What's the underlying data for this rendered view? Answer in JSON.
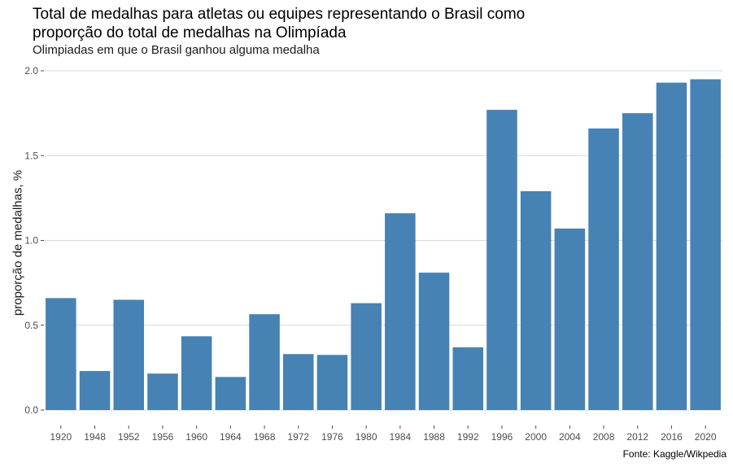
{
  "chart_data": {
    "type": "bar",
    "title": "Total de medalhas para atletas ou equipes representando o Brasil como proporção do total de medalhas na Olimpíada",
    "title_lines": [
      "Total de medalhas para atletas ou equipes representando o Brasil como",
      "proporção do total de medalhas na Olimpíada"
    ],
    "subtitle": "Olimpiadas em que o Brasil ganhou alguma medalha",
    "caption": "Fonte: Kaggle/Wikpedia",
    "xlabel": "",
    "ylabel": "proporção de medalhas, %",
    "ylim": [
      0,
      2.0
    ],
    "yticks": [
      0.0,
      0.5,
      1.0,
      1.5,
      2.0
    ],
    "ytick_labels": [
      "0.0",
      "0.5",
      "1.0",
      "1.5",
      "2.0"
    ],
    "grid": "horizontal",
    "bar_color": "#4682B4",
    "categories": [
      "1920",
      "1948",
      "1952",
      "1956",
      "1960",
      "1964",
      "1968",
      "1972",
      "1976",
      "1980",
      "1984",
      "1988",
      "1992",
      "1996",
      "2000",
      "2004",
      "2008",
      "2012",
      "2016",
      "2020"
    ],
    "values": [
      0.66,
      0.23,
      0.65,
      0.215,
      0.435,
      0.195,
      0.565,
      0.33,
      0.325,
      0.63,
      1.16,
      0.81,
      0.37,
      1.77,
      1.29,
      1.07,
      1.66,
      1.75,
      1.93,
      1.95
    ]
  }
}
